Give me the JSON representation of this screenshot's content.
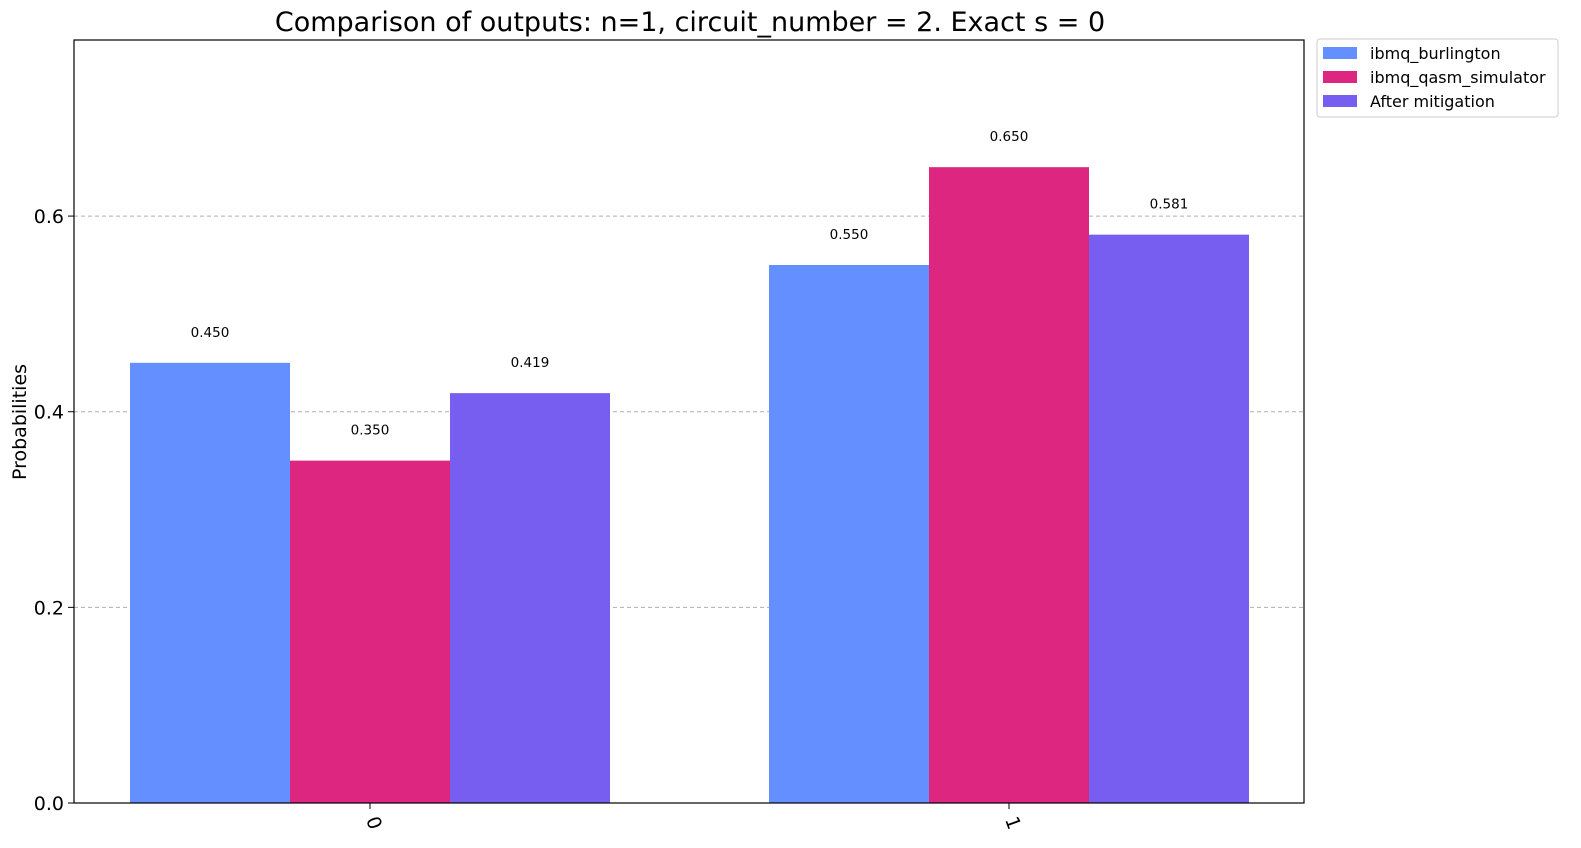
{
  "chart_data": {
    "type": "bar",
    "title": "Comparison of outputs: n=1, circuit_number = 2. Exact s = 0",
    "xlabel": "",
    "ylabel": "Probabilities",
    "categories": [
      "0",
      "1"
    ],
    "series": [
      {
        "name": "ibmq_burlington",
        "values": [
          0.45,
          0.55
        ],
        "labels": [
          "0.450",
          "0.550"
        ],
        "color": "#648fff"
      },
      {
        "name": "ibmq_qasm_simulator",
        "values": [
          0.35,
          0.65
        ],
        "labels": [
          "0.350",
          "0.650"
        ],
        "color": "#dc267f"
      },
      {
        "name": "After mitigation",
        "values": [
          0.419,
          0.581
        ],
        "labels": [
          "0.419",
          "0.581"
        ],
        "color": "#785ef0"
      }
    ],
    "ylim": [
      0,
      0.78
    ],
    "yticks": [
      0.0,
      0.2,
      0.4,
      0.6
    ],
    "ytick_labels": [
      "0.0",
      "0.2",
      "0.4",
      "0.6"
    ],
    "grid": "y-dashed",
    "legend_position": "outside-top-right",
    "xtick_rotation": "70"
  }
}
